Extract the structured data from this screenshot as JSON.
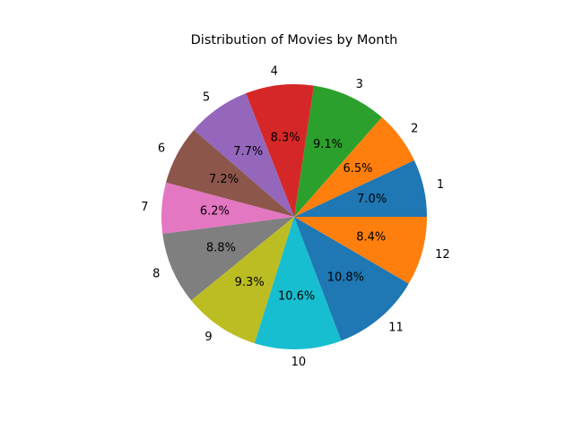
{
  "chart_data": {
    "type": "pie",
    "title": "Distribution of Movies by Month",
    "categories": [
      "1",
      "2",
      "3",
      "4",
      "5",
      "6",
      "7",
      "8",
      "9",
      "10",
      "11",
      "12"
    ],
    "values": [
      7.0,
      6.5,
      9.1,
      8.3,
      7.7,
      7.2,
      6.2,
      8.8,
      9.3,
      10.6,
      10.8,
      8.4
    ],
    "value_labels": [
      "7.0%",
      "6.5%",
      "9.1%",
      "8.3%",
      "7.7%",
      "7.2%",
      "6.2%",
      "8.8%",
      "9.3%",
      "10.6%",
      "10.8%",
      "8.4%"
    ],
    "colors": [
      "#1f77b4",
      "#ff7f0e",
      "#2ca02c",
      "#d62728",
      "#9467bd",
      "#8c564b",
      "#e377c2",
      "#7f7f7f",
      "#bcbd22",
      "#17becf",
      "#1f77b4",
      "#ff7f0e"
    ],
    "start_angle_deg": 0,
    "direction": "counterclockwise",
    "legend": "none"
  }
}
